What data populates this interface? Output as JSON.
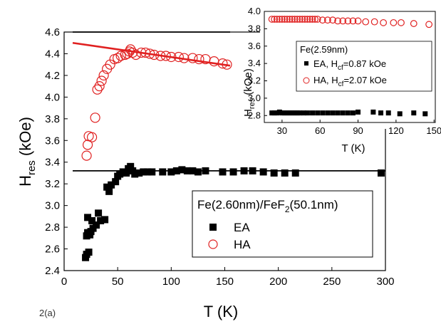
{
  "chart_data": [
    {
      "type": "scatter",
      "xlabel": "T (K)",
      "ylabel": {
        "base": "H",
        "sub": "res",
        "tail": " (kOe)"
      },
      "xlim": [
        0,
        300
      ],
      "ylim": [
        2.4,
        4.6
      ],
      "xticks": [
        "0",
        "50",
        "100",
        "150",
        "200",
        "250",
        "300"
      ],
      "yticks": [
        "2.4",
        "2.6",
        "2.8",
        "3.0",
        "3.2",
        "3.4",
        "3.6",
        "3.8",
        "4.0",
        "4.2",
        "4.4",
        "4.6"
      ],
      "legend": {
        "title": {
          "a": "Fe(2.60nm)/FeF",
          "b": "2",
          "c": "(50.1nm)"
        },
        "placement": "lower-right",
        "entries": [
          "EA",
          "HA"
        ]
      },
      "series": [
        {
          "name": "EA",
          "marker": "square",
          "color": "#000000",
          "points": [
            [
              20,
              2.52
            ],
            [
              21,
              2.55
            ],
            [
              21,
              2.72
            ],
            [
              22,
              2.89
            ],
            [
              22,
              2.75
            ],
            [
              23,
              2.57
            ],
            [
              24,
              2.73
            ],
            [
              25,
              2.76
            ],
            [
              26,
              2.86
            ],
            [
              27,
              2.79
            ],
            [
              30,
              2.82
            ],
            [
              32,
              2.93
            ],
            [
              34,
              2.86
            ],
            [
              38,
              2.87
            ],
            [
              40,
              3.17
            ],
            [
              42,
              3.13
            ],
            [
              44,
              3.19
            ],
            [
              48,
              3.22
            ],
            [
              50,
              3.27
            ],
            [
              52,
              3.29
            ],
            [
              55,
              3.31
            ],
            [
              58,
              3.3
            ],
            [
              60,
              3.34
            ],
            [
              62,
              3.36
            ],
            [
              64,
              3.32
            ],
            [
              66,
              3.29
            ],
            [
              70,
              3.3
            ],
            [
              74,
              3.31
            ],
            [
              78,
              3.31
            ],
            [
              82,
              3.31
            ],
            [
              92,
              3.31
            ],
            [
              100,
              3.31
            ],
            [
              105,
              3.32
            ],
            [
              110,
              3.33
            ],
            [
              115,
              3.32
            ],
            [
              120,
              3.32
            ],
            [
              125,
              3.31
            ],
            [
              132,
              3.32
            ],
            [
              148,
              3.31
            ],
            [
              158,
              3.31
            ],
            [
              168,
              3.32
            ],
            [
              176,
              3.32
            ],
            [
              186,
              3.31
            ],
            [
              196,
              3.3
            ],
            [
              206,
              3.3
            ],
            [
              216,
              3.3
            ],
            [
              296,
              3.3
            ]
          ]
        },
        {
          "name": "HA",
          "marker": "circle-open",
          "color": "#e02020",
          "points": [
            [
              21,
              3.46
            ],
            [
              22,
              3.56
            ],
            [
              23,
              3.64
            ],
            [
              26,
              3.63
            ],
            [
              29,
              3.81
            ],
            [
              31,
              4.07
            ],
            [
              33,
              4.1
            ],
            [
              35,
              4.15
            ],
            [
              37,
              4.2
            ],
            [
              40,
              4.26
            ],
            [
              43,
              4.3
            ],
            [
              47,
              4.35
            ],
            [
              50,
              4.36
            ],
            [
              53,
              4.38
            ],
            [
              57,
              4.39
            ],
            [
              59,
              4.4
            ],
            [
              61,
              4.42
            ],
            [
              62,
              4.44
            ],
            [
              64,
              4.41
            ],
            [
              67,
              4.39
            ],
            [
              72,
              4.41
            ],
            [
              76,
              4.41
            ],
            [
              80,
              4.4
            ],
            [
              84,
              4.39
            ],
            [
              90,
              4.38
            ],
            [
              95,
              4.38
            ],
            [
              100,
              4.37
            ],
            [
              107,
              4.37
            ],
            [
              112,
              4.36
            ],
            [
              120,
              4.36
            ],
            [
              126,
              4.35
            ],
            [
              132,
              4.35
            ],
            [
              140,
              4.33
            ],
            [
              148,
              4.31
            ],
            [
              152,
              4.3
            ]
          ]
        }
      ],
      "lines": [
        {
          "name": "EA fit",
          "color": "#000000",
          "x": [
            8,
            300
          ],
          "y": [
            3.32,
            3.32
          ]
        },
        {
          "name": "HA fit",
          "color": "#e02020",
          "x": [
            8,
            155
          ],
          "y": [
            4.5,
            4.29
          ]
        },
        {
          "name": "top rule",
          "color": "#000000",
          "x": [
            8,
            155
          ],
          "y": [
            4.6,
            4.6
          ]
        }
      ]
    },
    {
      "type": "scatter",
      "xlabel": "T (K)",
      "ylabel": {
        "base": "H",
        "sub": "res",
        "tail": " (kOe)"
      },
      "xlim": [
        16,
        151
      ],
      "ylim": [
        2.72,
        4.0
      ],
      "xticks": [
        "30",
        "60",
        "90",
        "120",
        "150"
      ],
      "yticks": [
        "2.8",
        "3.0",
        "3.2",
        "3.4",
        "3.6",
        "3.8",
        "4.0"
      ],
      "legend": {
        "title": "Fe(2.59nm)",
        "placement": "center",
        "entries": [
          {
            "a": "EA, H",
            "b": "cf",
            "c": "=0.87 kOe"
          },
          {
            "a": "HA, H",
            "b": "cf",
            "c": "=2.07 kOe"
          }
        ]
      },
      "series": [
        {
          "name": "EA, Hcf=0.87 kOe",
          "marker": "square",
          "color": "#000000",
          "points": [
            [
              22,
              2.83
            ],
            [
              24,
              2.83
            ],
            [
              26,
              2.83
            ],
            [
              28,
              2.84
            ],
            [
              30,
              2.83
            ],
            [
              32,
              2.83
            ],
            [
              34,
              2.83
            ],
            [
              36,
              2.83
            ],
            [
              38,
              2.83
            ],
            [
              40,
              2.83
            ],
            [
              42,
              2.83
            ],
            [
              44,
              2.83
            ],
            [
              47,
              2.83
            ],
            [
              50,
              2.83
            ],
            [
              54,
              2.83
            ],
            [
              58,
              2.83
            ],
            [
              62,
              2.83
            ],
            [
              66,
              2.83
            ],
            [
              70,
              2.83
            ],
            [
              74,
              2.83
            ],
            [
              78,
              2.83
            ],
            [
              82,
              2.83
            ],
            [
              86,
              2.83
            ],
            [
              90,
              2.84
            ],
            [
              102,
              2.84
            ],
            [
              108,
              2.83
            ],
            [
              114,
              2.83
            ],
            [
              123,
              2.82
            ],
            [
              134,
              2.83
            ],
            [
              143,
              2.82
            ]
          ]
        },
        {
          "name": "HA, Hcf=2.07 kOe",
          "marker": "circle-open",
          "color": "#e02020",
          "points": [
            [
              22,
              3.91
            ],
            [
              24,
              3.91
            ],
            [
              26,
              3.91
            ],
            [
              28,
              3.91
            ],
            [
              30,
              3.91
            ],
            [
              32,
              3.91
            ],
            [
              34,
              3.91
            ],
            [
              36,
              3.91
            ],
            [
              38,
              3.91
            ],
            [
              40,
              3.91
            ],
            [
              42,
              3.91
            ],
            [
              44,
              3.91
            ],
            [
              46,
              3.91
            ],
            [
              48,
              3.91
            ],
            [
              50,
              3.91
            ],
            [
              52,
              3.91
            ],
            [
              54,
              3.91
            ],
            [
              56,
              3.91
            ],
            [
              58,
              3.91
            ],
            [
              62,
              3.9
            ],
            [
              66,
              3.9
            ],
            [
              70,
              3.9
            ],
            [
              74,
              3.89
            ],
            [
              78,
              3.89
            ],
            [
              82,
              3.89
            ],
            [
              86,
              3.89
            ],
            [
              90,
              3.89
            ],
            [
              96,
              3.88
            ],
            [
              103,
              3.88
            ],
            [
              110,
              3.87
            ],
            [
              118,
              3.87
            ],
            [
              124,
              3.87
            ],
            [
              134,
              3.86
            ],
            [
              146,
              3.85
            ]
          ]
        }
      ]
    }
  ],
  "fragment": "2(a)"
}
